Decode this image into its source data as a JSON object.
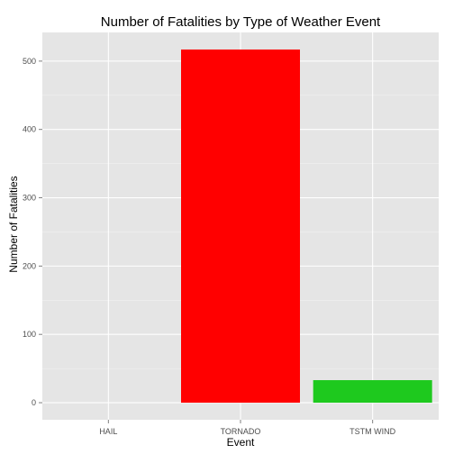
{
  "chart_data": {
    "type": "bar",
    "title": "Number of Fatalities by Type of Weather Event",
    "xlabel": "Event",
    "ylabel": "Number of Fatalities",
    "categories": [
      "HAIL",
      "TORNADO",
      "TSTM WIND"
    ],
    "values": [
      0,
      517,
      33
    ],
    "colors": [
      "#F8766D",
      "#FF0000",
      "#1EC91E"
    ],
    "ylim": [
      -25,
      542
    ],
    "yticks": [
      0,
      100,
      200,
      300,
      400,
      500
    ],
    "grid": true,
    "panel_background": "#E5E5E5",
    "grid_color": "#FFFFFF",
    "legend": "none"
  }
}
